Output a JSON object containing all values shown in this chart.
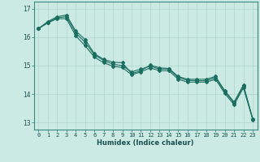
{
  "xlabel": "Humidex (Indice chaleur)",
  "bg_color": "#cceae4",
  "line_color": "#1a6e60",
  "grid_color": "#aed4cc",
  "xlim": [
    -0.5,
    23.5
  ],
  "ylim": [
    12.75,
    17.25
  ],
  "yticks": [
    13,
    14,
    15,
    16,
    17
  ],
  "xticks": [
    0,
    1,
    2,
    3,
    4,
    5,
    6,
    7,
    8,
    9,
    10,
    11,
    12,
    13,
    14,
    15,
    16,
    17,
    18,
    19,
    20,
    21,
    22,
    23
  ],
  "series": {
    "line1": [
      16.3,
      16.55,
      16.72,
      16.78,
      16.22,
      15.92,
      15.42,
      15.22,
      15.12,
      15.1,
      14.72,
      14.82,
      15.02,
      14.92,
      14.9,
      14.62,
      14.52,
      14.52,
      14.52,
      14.62,
      14.12,
      13.72,
      14.32,
      13.12
    ],
    "line2": [
      16.3,
      16.52,
      16.68,
      16.72,
      16.15,
      15.82,
      15.38,
      15.18,
      15.05,
      15.0,
      14.78,
      14.88,
      14.98,
      14.88,
      14.88,
      14.58,
      14.48,
      14.47,
      14.47,
      14.58,
      14.08,
      13.68,
      14.28,
      13.12
    ],
    "line3": [
      16.3,
      16.5,
      16.65,
      16.65,
      16.05,
      15.7,
      15.3,
      15.1,
      14.98,
      14.93,
      14.68,
      14.78,
      14.92,
      14.82,
      14.82,
      14.52,
      14.42,
      14.42,
      14.42,
      14.52,
      14.02,
      13.62,
      14.22,
      13.1
    ]
  },
  "marker": "D",
  "markersize": 2.0,
  "linewidth": 0.8,
  "xlabel_fontsize": 6.0,
  "xtick_fontsize": 5.0,
  "ytick_fontsize": 5.5
}
